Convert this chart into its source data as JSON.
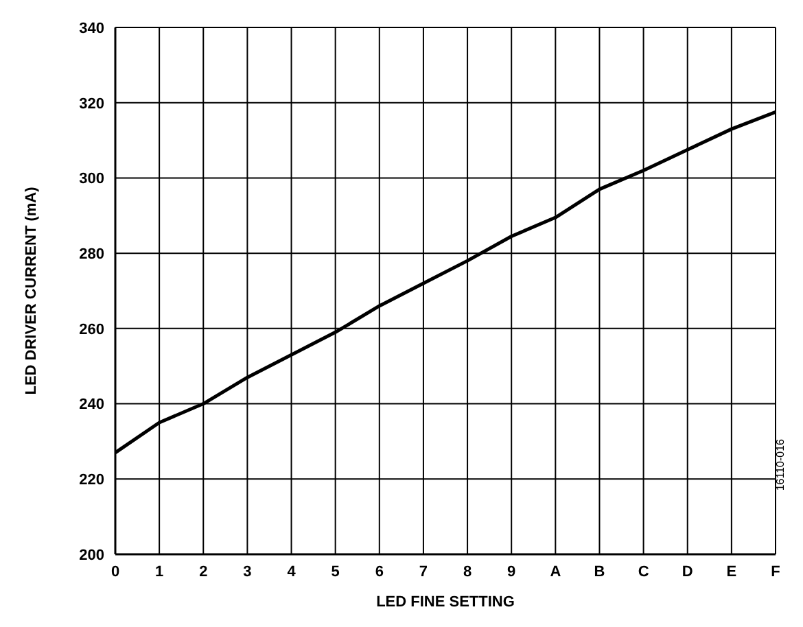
{
  "chart_data": {
    "type": "line",
    "xlabel": "LED FINE SETTING",
    "ylabel": "LED DRIVER CURRENT (mA)",
    "categories": [
      "0",
      "1",
      "2",
      "3",
      "4",
      "5",
      "6",
      "7",
      "8",
      "9",
      "A",
      "B",
      "C",
      "D",
      "E",
      "F"
    ],
    "series": [
      {
        "color": "#000000",
        "values": [
          227,
          235,
          240,
          247,
          253,
          259,
          266,
          272,
          278,
          284.5,
          289.5,
          297,
          302,
          307.5,
          313,
          317.5
        ]
      }
    ],
    "ylim": [
      200,
      340
    ],
    "yticks": [
      200,
      220,
      240,
      260,
      280,
      300,
      320,
      340
    ],
    "grid": true,
    "marker": "none",
    "line_style": "solid",
    "annotations": [
      "16110-016"
    ]
  }
}
